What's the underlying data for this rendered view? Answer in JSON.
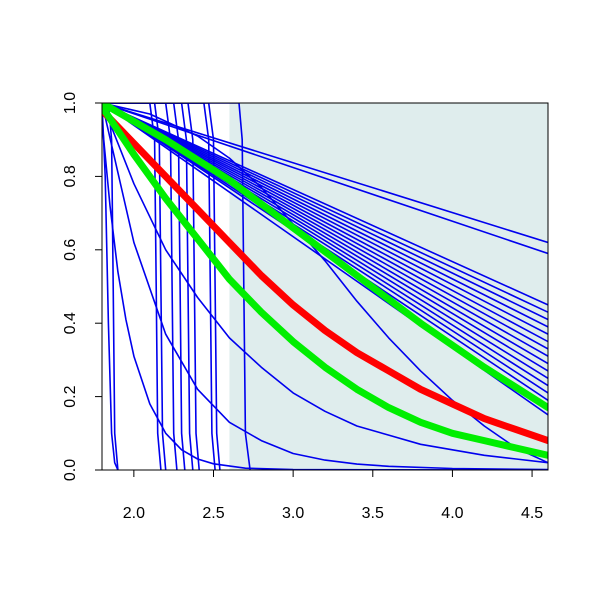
{
  "chart_data": {
    "type": "line",
    "title": "",
    "xlabel": "",
    "ylabel": "",
    "xlim": [
      1.8,
      4.6
    ],
    "ylim": [
      0.0,
      1.0
    ],
    "grid": false,
    "legend": "none",
    "x_ticks": [
      2.0,
      2.5,
      3.0,
      3.5,
      4.0,
      4.5
    ],
    "x_tick_labels": [
      "2.0",
      "2.5",
      "3.0",
      "3.5",
      "4.0",
      "4.5"
    ],
    "y_ticks": [
      0.0,
      0.2,
      0.4,
      0.6,
      0.8,
      1.0
    ],
    "y_tick_labels": [
      "0.0",
      "0.2",
      "0.4",
      "0.6",
      "0.8",
      "1.0"
    ],
    "shaded_region": {
      "x": [
        2.6,
        4.6
      ],
      "color": "#dfeded"
    },
    "colors": {
      "blue": "#0000ee",
      "red": "#ff0000",
      "green": "#00ee00",
      "axis": "#000000"
    },
    "series": [
      {
        "color": "blue",
        "width": 1.6,
        "x": [
          1.8,
          4.6
        ],
        "y": [
          1.0,
          0.62
        ]
      },
      {
        "color": "blue",
        "width": 1.6,
        "x": [
          1.8,
          4.6
        ],
        "y": [
          1.0,
          0.59
        ]
      },
      {
        "color": "blue",
        "width": 1.6,
        "x": [
          1.8,
          4.6
        ],
        "y": [
          1.0,
          0.45
        ]
      },
      {
        "color": "blue",
        "width": 1.6,
        "x": [
          1.8,
          4.6
        ],
        "y": [
          1.0,
          0.43
        ]
      },
      {
        "color": "blue",
        "width": 1.6,
        "x": [
          1.8,
          4.6
        ],
        "y": [
          1.0,
          0.41
        ]
      },
      {
        "color": "blue",
        "width": 1.6,
        "x": [
          1.8,
          4.6
        ],
        "y": [
          1.0,
          0.39
        ]
      },
      {
        "color": "blue",
        "width": 1.6,
        "x": [
          1.8,
          4.6
        ],
        "y": [
          1.0,
          0.37
        ]
      },
      {
        "color": "blue",
        "width": 1.6,
        "x": [
          1.8,
          4.6
        ],
        "y": [
          1.0,
          0.35
        ]
      },
      {
        "color": "blue",
        "width": 1.6,
        "x": [
          1.8,
          4.6
        ],
        "y": [
          1.0,
          0.33
        ]
      },
      {
        "color": "blue",
        "width": 1.6,
        "x": [
          1.8,
          4.6
        ],
        "y": [
          1.0,
          0.31
        ]
      },
      {
        "color": "blue",
        "width": 1.6,
        "x": [
          1.8,
          4.6
        ],
        "y": [
          1.0,
          0.29
        ]
      },
      {
        "color": "blue",
        "width": 1.6,
        "x": [
          1.8,
          4.6
        ],
        "y": [
          1.0,
          0.27
        ]
      },
      {
        "color": "blue",
        "width": 1.6,
        "x": [
          1.8,
          4.6
        ],
        "y": [
          1.0,
          0.25
        ]
      },
      {
        "color": "blue",
        "width": 1.6,
        "x": [
          1.8,
          4.6
        ],
        "y": [
          1.0,
          0.23
        ]
      },
      {
        "color": "blue",
        "width": 1.6,
        "x": [
          1.8,
          4.6
        ],
        "y": [
          1.0,
          0.21
        ]
      },
      {
        "color": "blue",
        "width": 1.6,
        "x": [
          1.8,
          4.6
        ],
        "y": [
          1.0,
          0.19
        ]
      },
      {
        "color": "blue",
        "width": 1.6,
        "x": [
          1.8,
          4.6
        ],
        "y": [
          1.0,
          0.15
        ]
      },
      {
        "color": "blue",
        "width": 1.6,
        "x": [
          1.8,
          2.0,
          2.2,
          2.4,
          2.6,
          2.8,
          3.0,
          3.2,
          3.4,
          3.6,
          3.8,
          4.0,
          4.2,
          4.4,
          4.6
        ],
        "y": [
          1.0,
          0.78,
          0.6,
          0.47,
          0.36,
          0.28,
          0.21,
          0.16,
          0.12,
          0.095,
          0.07,
          0.055,
          0.04,
          0.03,
          0.02
        ]
      },
      {
        "color": "blue",
        "width": 1.6,
        "x": [
          1.8,
          2.0,
          2.2,
          2.4,
          2.6,
          2.8,
          3.0,
          3.2,
          3.4,
          3.6,
          4.0,
          4.6
        ],
        "y": [
          1.0,
          0.62,
          0.37,
          0.22,
          0.13,
          0.08,
          0.045,
          0.027,
          0.016,
          0.01,
          0.004,
          0.001
        ]
      },
      {
        "color": "blue",
        "width": 1.6,
        "x": [
          1.8,
          1.85,
          1.9,
          1.95,
          2.0,
          2.1,
          2.2,
          2.3,
          2.4,
          2.5,
          2.7,
          3.0,
          4.6
        ],
        "y": [
          0.95,
          0.72,
          0.54,
          0.41,
          0.31,
          0.18,
          0.1,
          0.055,
          0.03,
          0.017,
          0.005,
          0.001,
          0.0
        ]
      },
      {
        "color": "blue",
        "width": 1.6,
        "x": [
          1.8,
          1.82,
          1.84,
          1.86,
          1.88,
          1.9
        ],
        "y": [
          1.0,
          0.8,
          0.4,
          0.1,
          0.02,
          0.0
        ]
      },
      {
        "color": "blue",
        "width": 1.6,
        "x": [
          1.8,
          1.84,
          1.86,
          1.87,
          1.88,
          1.9
        ],
        "y": [
          1.0,
          1.0,
          0.9,
          0.5,
          0.1,
          0.0
        ]
      },
      {
        "color": "blue",
        "width": 1.6,
        "x": [
          1.8,
          2.1,
          2.13,
          2.14,
          2.15,
          2.17
        ],
        "y": [
          1.0,
          1.0,
          0.9,
          0.5,
          0.1,
          0.0
        ]
      },
      {
        "color": "blue",
        "width": 1.6,
        "x": [
          1.8,
          2.13,
          2.16,
          2.17,
          2.18,
          2.2
        ],
        "y": [
          1.0,
          1.0,
          0.9,
          0.5,
          0.1,
          0.0
        ]
      },
      {
        "color": "blue",
        "width": 1.6,
        "x": [
          1.8,
          2.2,
          2.23,
          2.24,
          2.25,
          2.27
        ],
        "y": [
          1.0,
          1.0,
          0.9,
          0.5,
          0.1,
          0.0
        ]
      },
      {
        "color": "blue",
        "width": 1.6,
        "x": [
          1.8,
          2.25,
          2.28,
          2.29,
          2.3,
          2.32
        ],
        "y": [
          1.0,
          1.0,
          0.9,
          0.5,
          0.1,
          0.0
        ]
      },
      {
        "color": "blue",
        "width": 1.6,
        "x": [
          1.8,
          2.3,
          2.33,
          2.34,
          2.35,
          2.37
        ],
        "y": [
          1.0,
          1.0,
          0.9,
          0.5,
          0.1,
          0.0
        ]
      },
      {
        "color": "blue",
        "width": 1.6,
        "x": [
          1.8,
          2.34,
          2.37,
          2.38,
          2.39,
          2.41
        ],
        "y": [
          1.0,
          1.0,
          0.9,
          0.5,
          0.1,
          0.0
        ]
      },
      {
        "color": "blue",
        "width": 1.6,
        "x": [
          1.8,
          2.44,
          2.47,
          2.48,
          2.49,
          2.51
        ],
        "y": [
          1.0,
          1.0,
          0.9,
          0.5,
          0.1,
          0.0
        ]
      },
      {
        "color": "blue",
        "width": 1.6,
        "x": [
          1.8,
          2.47,
          2.5,
          2.51,
          2.52,
          2.54
        ],
        "y": [
          1.0,
          1.0,
          0.9,
          0.5,
          0.1,
          0.0
        ]
      },
      {
        "color": "blue",
        "width": 1.6,
        "x": [
          1.8,
          2.66,
          2.68,
          2.69,
          2.7,
          2.73
        ],
        "y": [
          1.0,
          1.0,
          0.9,
          0.5,
          0.1,
          0.0
        ]
      },
      {
        "color": "blue",
        "width": 1.6,
        "x": [
          1.8,
          2.1,
          2.4,
          2.6,
          2.8,
          3.0,
          3.2,
          3.4,
          3.6,
          3.8,
          4.0,
          4.2,
          4.4,
          4.6
        ],
        "y": [
          1.0,
          0.97,
          0.91,
          0.85,
          0.77,
          0.67,
          0.57,
          0.46,
          0.36,
          0.27,
          0.19,
          0.12,
          0.06,
          0.02
        ]
      },
      {
        "color": "red",
        "width": 7,
        "x": [
          1.8,
          2.0,
          2.2,
          2.4,
          2.6,
          2.8,
          3.0,
          3.2,
          3.4,
          3.6,
          3.8,
          4.0,
          4.2,
          4.4,
          4.6
        ],
        "y": [
          0.98,
          0.89,
          0.8,
          0.71,
          0.62,
          0.53,
          0.45,
          0.38,
          0.32,
          0.27,
          0.22,
          0.18,
          0.14,
          0.11,
          0.08
        ]
      },
      {
        "color": "green",
        "width": 7,
        "x": [
          1.8,
          2.2,
          2.6,
          3.0,
          3.4,
          3.8,
          4.2,
          4.6
        ],
        "y": [
          1.0,
          0.9,
          0.79,
          0.66,
          0.53,
          0.4,
          0.28,
          0.17
        ]
      },
      {
        "color": "green",
        "width": 7,
        "x": [
          1.8,
          2.0,
          2.2,
          2.4,
          2.6,
          2.8,
          3.0,
          3.2,
          3.4,
          3.6,
          3.8,
          4.0,
          4.2,
          4.4,
          4.6
        ],
        "y": [
          0.99,
          0.86,
          0.74,
          0.63,
          0.52,
          0.43,
          0.35,
          0.28,
          0.22,
          0.17,
          0.13,
          0.1,
          0.08,
          0.06,
          0.04
        ]
      }
    ]
  }
}
